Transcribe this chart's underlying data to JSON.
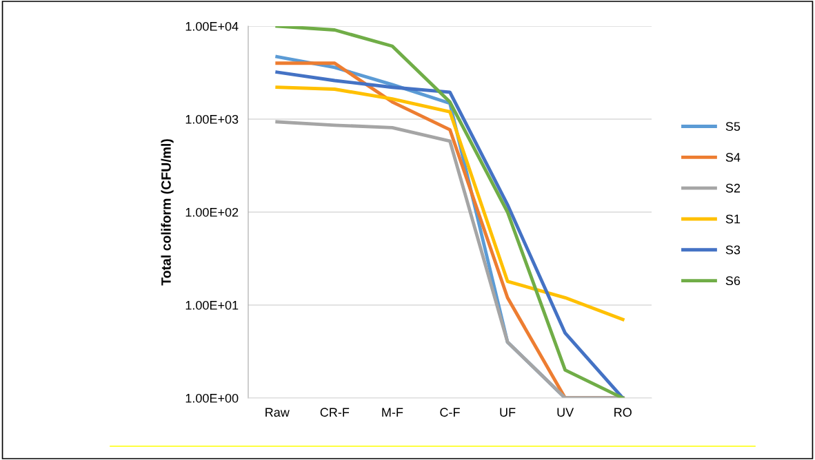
{
  "chart_data": {
    "type": "line",
    "ylabel": "Total coliform (CFU/ml)",
    "log": true,
    "categories": [
      "Raw",
      "CR-F",
      "M-F",
      "C-F",
      "UF",
      "UV",
      "RO"
    ],
    "series": [
      {
        "name": "S5",
        "color": "#5b9bd5",
        "values": [
          4700,
          3600,
          2350,
          1480,
          4,
          1,
          1
        ]
      },
      {
        "name": "S4",
        "color": "#ed7d31",
        "values": [
          4000,
          4000,
          1530,
          770,
          12,
          1,
          1
        ]
      },
      {
        "name": "S2",
        "color": "#a5a5a5",
        "values": [
          935,
          860,
          810,
          580,
          4,
          1,
          1
        ]
      },
      {
        "name": "S1",
        "color": "#ffc000",
        "values": [
          2200,
          2100,
          1650,
          1200,
          18,
          12,
          7
        ]
      },
      {
        "name": "S3",
        "color": "#4472c4",
        "values": [
          3200,
          2600,
          2200,
          1950,
          120,
          5,
          1
        ]
      },
      {
        "name": "S6",
        "color": "#70ad47",
        "values": [
          10000,
          9100,
          6100,
          1530,
          100,
          2,
          1
        ]
      }
    ],
    "ylim": [
      1,
      10000
    ],
    "yticks": [
      {
        "value": 1,
        "label": "1.00E+00"
      },
      {
        "value": 10,
        "label": "1.00E+01"
      },
      {
        "value": 100,
        "label": "1.00E+02"
      },
      {
        "value": 1000,
        "label": "1.00E+03"
      },
      {
        "value": 10000,
        "label": "1.00E+04"
      }
    ],
    "grid": "y",
    "legend": "right",
    "marker": "none",
    "line_style": "solid"
  }
}
